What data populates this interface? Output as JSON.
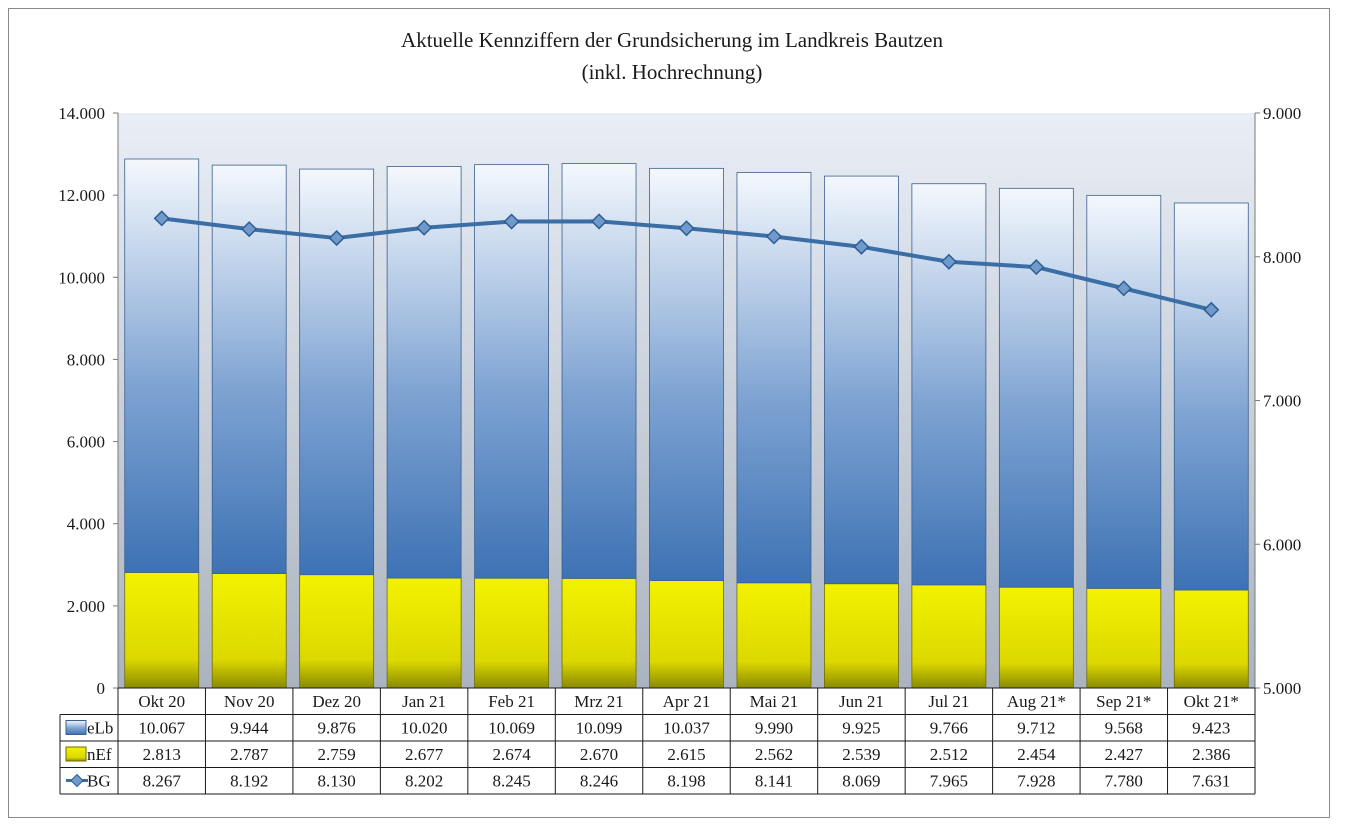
{
  "chart_data": {
    "type": "bar",
    "title": "Aktuelle Kennziffern der Grundsicherung im Landkreis Bautzen",
    "subtitle": "(inkl. Hochrechnung)",
    "categories": [
      "Okt 20",
      "Nov 20",
      "Dez 20",
      "Jan 21",
      "Feb 21",
      "Mrz 21",
      "Apr 21",
      "Mai 21",
      "Jun 21",
      "Jul 21",
      "Aug 21*",
      "Sep 21*",
      "Okt 21*"
    ],
    "stacked": true,
    "series": [
      {
        "name": "eLb",
        "type": "bar",
        "axis": "left",
        "color": "#4f81bd",
        "values": [
          10067,
          9944,
          9876,
          10020,
          10069,
          10099,
          10037,
          9990,
          9925,
          9766,
          9712,
          9568,
          9423
        ],
        "labels": [
          "10.067",
          "9.944",
          "9.876",
          "10.020",
          "10.069",
          "10.099",
          "10.037",
          "9.990",
          "9.925",
          "9.766",
          "9.712",
          "9.568",
          "9.423"
        ]
      },
      {
        "name": "nEf",
        "type": "bar",
        "axis": "left",
        "color": "#e8e600",
        "values": [
          2813,
          2787,
          2759,
          2677,
          2674,
          2670,
          2615,
          2562,
          2539,
          2512,
          2454,
          2427,
          2386
        ],
        "labels": [
          "2.813",
          "2.787",
          "2.759",
          "2.677",
          "2.674",
          "2.670",
          "2.615",
          "2.562",
          "2.539",
          "2.512",
          "2.454",
          "2.427",
          "2.386"
        ]
      },
      {
        "name": "BG",
        "type": "line",
        "axis": "right",
        "color": "#3a6ea5",
        "values": [
          8267,
          8192,
          8130,
          8202,
          8245,
          8246,
          8198,
          8141,
          8069,
          7965,
          7928,
          7780,
          7631
        ],
        "labels": [
          "8.267",
          "8.192",
          "8.130",
          "8.202",
          "8.245",
          "8.246",
          "8.198",
          "8.141",
          "8.069",
          "7.965",
          "7.928",
          "7.780",
          "7.631"
        ]
      }
    ],
    "ylim": [
      0,
      14000
    ],
    "y_ticks": [
      0,
      2000,
      4000,
      6000,
      8000,
      10000,
      12000,
      14000
    ],
    "y_tick_labels": [
      "0",
      "2.000",
      "4.000",
      "6.000",
      "8.000",
      "10.000",
      "12.000",
      "14.000"
    ],
    "y2lim": [
      5000,
      9000
    ],
    "y2_ticks": [
      5000,
      6000,
      7000,
      8000,
      9000
    ],
    "y2_tick_labels": [
      "5.000",
      "6.000",
      "7.000",
      "8.000",
      "9.000"
    ],
    "legend": "data-table",
    "grid": false,
    "colors": {
      "plot_top": "#e9eef6",
      "plot_bottom": "#aab3bf",
      "line": "#3a6ea5",
      "marker": "#6f9acb",
      "bar_blue_top": "#f4f8fd",
      "bar_blue_bottom": "#3d72b4",
      "bar_yellow_top": "#f3f200",
      "bar_yellow_bottom": "#8a8a00"
    }
  }
}
